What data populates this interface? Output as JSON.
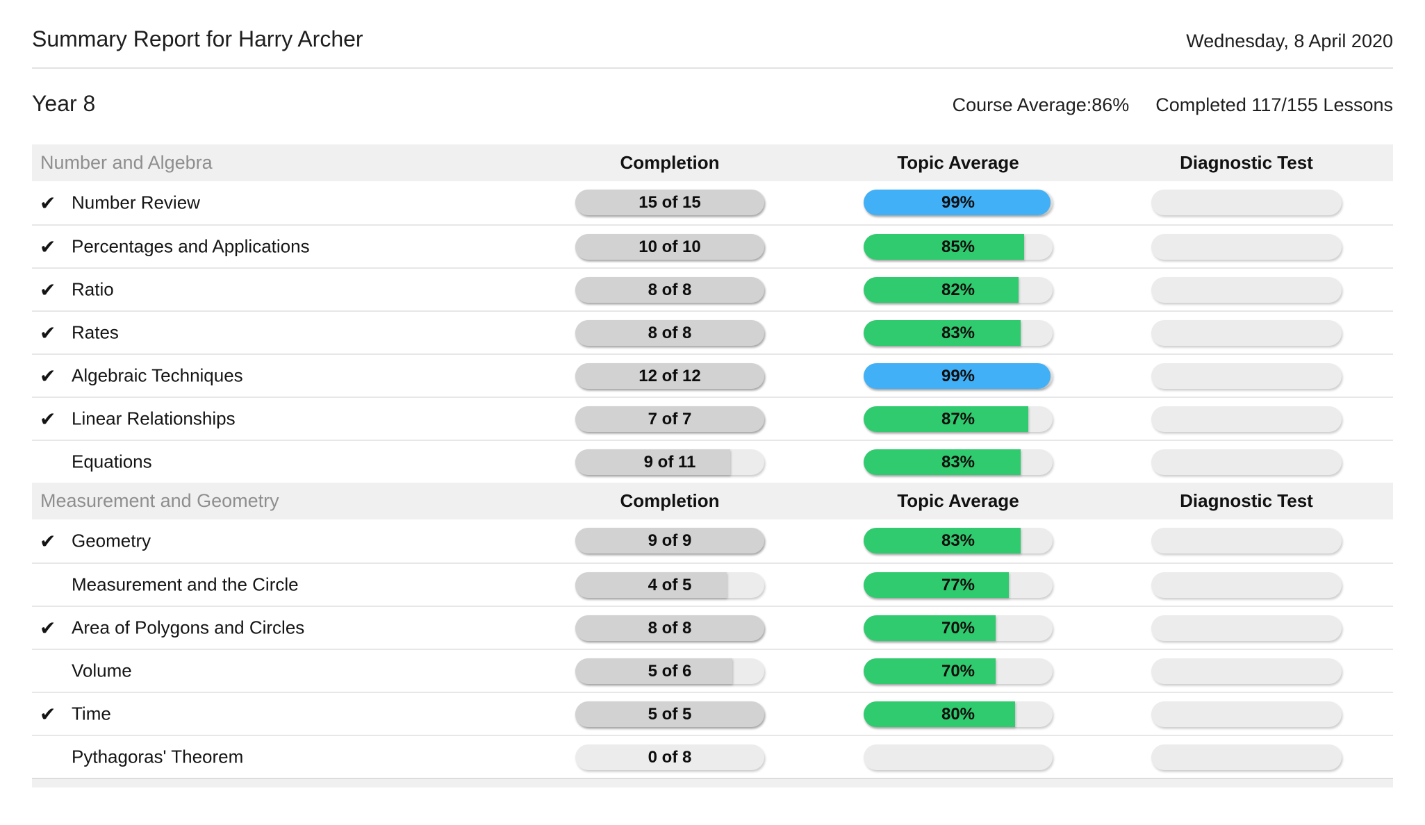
{
  "header": {
    "title": "Summary Report for Harry Archer",
    "date": "Wednesday, 8 April 2020"
  },
  "course": {
    "name": "Year 8",
    "average": "Course Average:86%",
    "completed": "Completed 117/155 Lessons"
  },
  "columns": {
    "completion": "Completion",
    "average": "Topic Average",
    "diagnostic": "Diagnostic Test"
  },
  "icons": {
    "completed_check": "✔"
  },
  "colors": {
    "green": "#30cb6e",
    "blue": "#41b0f6",
    "gray_fill": "#d2d2d2",
    "track": "#ececec",
    "section_bg": "#f0f0f0"
  },
  "sections": [
    {
      "name": "Number and Algebra",
      "rows": [
        {
          "topic": "Number Review",
          "completed": true,
          "completion_label": "15 of 15",
          "completion_pct": 100,
          "average_label": "99%",
          "average_pct": 99,
          "average_color": "blue"
        },
        {
          "topic": "Percentages and Applications",
          "completed": true,
          "completion_label": "10 of 10",
          "completion_pct": 100,
          "average_label": "85%",
          "average_pct": 85,
          "average_color": "green"
        },
        {
          "topic": "Ratio",
          "completed": true,
          "completion_label": "8 of 8",
          "completion_pct": 100,
          "average_label": "82%",
          "average_pct": 82,
          "average_color": "green"
        },
        {
          "topic": "Rates",
          "completed": true,
          "completion_label": "8 of 8",
          "completion_pct": 100,
          "average_label": "83%",
          "average_pct": 83,
          "average_color": "green"
        },
        {
          "topic": "Algebraic Techniques",
          "completed": true,
          "completion_label": "12 of 12",
          "completion_pct": 100,
          "average_label": "99%",
          "average_pct": 99,
          "average_color": "blue"
        },
        {
          "topic": "Linear Relationships",
          "completed": true,
          "completion_label": "7 of 7",
          "completion_pct": 100,
          "average_label": "87%",
          "average_pct": 87,
          "average_color": "green"
        },
        {
          "topic": "Equations",
          "completed": false,
          "completion_label": "9 of 11",
          "completion_pct": 82,
          "average_label": "83%",
          "average_pct": 83,
          "average_color": "green"
        }
      ]
    },
    {
      "name": "Measurement and Geometry",
      "rows": [
        {
          "topic": "Geometry",
          "completed": true,
          "completion_label": "9 of 9",
          "completion_pct": 100,
          "average_label": "83%",
          "average_pct": 83,
          "average_color": "green"
        },
        {
          "topic": "Measurement and the Circle",
          "completed": false,
          "completion_label": "4 of 5",
          "completion_pct": 80,
          "average_label": "77%",
          "average_pct": 77,
          "average_color": "green"
        },
        {
          "topic": "Area of Polygons and Circles",
          "completed": true,
          "completion_label": "8 of 8",
          "completion_pct": 100,
          "average_label": "70%",
          "average_pct": 70,
          "average_color": "green"
        },
        {
          "topic": "Volume",
          "completed": false,
          "completion_label": "5 of 6",
          "completion_pct": 83,
          "average_label": "70%",
          "average_pct": 70,
          "average_color": "green"
        },
        {
          "topic": "Time",
          "completed": true,
          "completion_label": "5 of 5",
          "completion_pct": 100,
          "average_label": "80%",
          "average_pct": 80,
          "average_color": "green"
        },
        {
          "topic": "Pythagoras' Theorem",
          "completed": false,
          "completion_label": "0 of 8",
          "completion_pct": 0,
          "average_label": "",
          "average_pct": 0,
          "average_color": "none"
        }
      ]
    }
  ]
}
